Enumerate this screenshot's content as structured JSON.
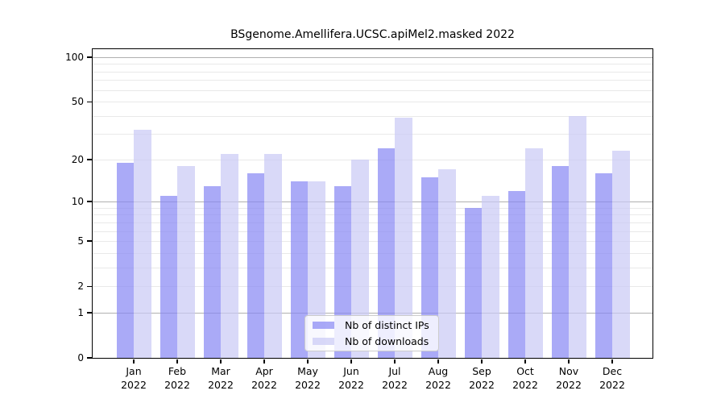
{
  "chart_data": {
    "type": "bar",
    "title": "BSgenome.Amellifera.UCSC.apiMel2.masked 2022",
    "categories": [
      "Jan",
      "Feb",
      "Mar",
      "Apr",
      "May",
      "Jun",
      "Jul",
      "Aug",
      "Sep",
      "Oct",
      "Nov",
      "Dec"
    ],
    "category_year": "2022",
    "series": [
      {
        "name": "Nb of distinct IPs",
        "color": "rgba(134,134,244,0.7)",
        "values": [
          19,
          11,
          13,
          16,
          14,
          13,
          24,
          15,
          9,
          12,
          18,
          16
        ]
      },
      {
        "name": "Nb of downloads",
        "color": "rgba(201,201,245,0.7)",
        "values": [
          32,
          18,
          22,
          22,
          14,
          20,
          39,
          17,
          11,
          24,
          40,
          23
        ]
      }
    ],
    "yscale": "log1p",
    "ytick_labels": [
      0,
      1,
      2,
      5,
      10,
      20,
      50,
      100
    ],
    "major_gridlines": [
      1,
      10,
      100
    ],
    "minor_gridlines": [
      2,
      3,
      4,
      5,
      6,
      7,
      8,
      9,
      20,
      30,
      40,
      50,
      60,
      70,
      80,
      90
    ],
    "ylim": [
      0,
      113
    ],
    "grid_major_color": "#b0b0b0",
    "grid_minor_color": "#e9e9e9",
    "axis_color": "#000000",
    "legend_position": "lower center",
    "grid": true
  }
}
